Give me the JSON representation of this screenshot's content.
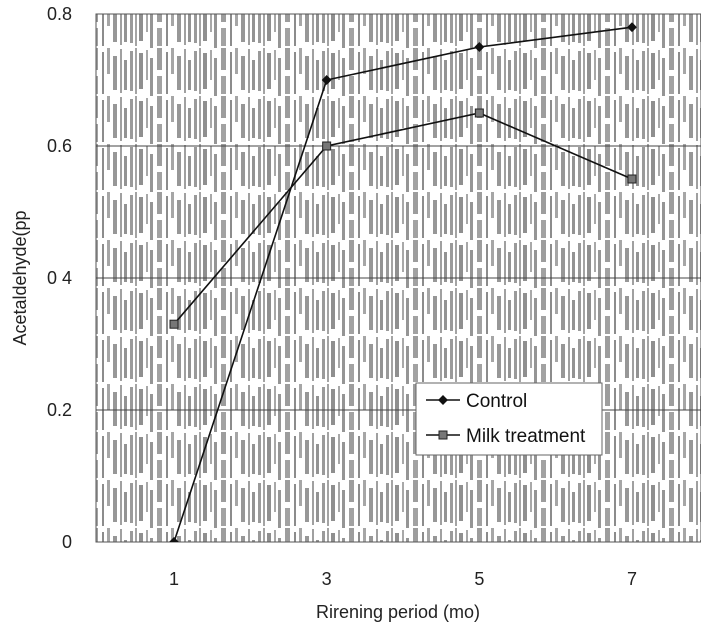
{
  "chart_data": {
    "type": "line",
    "title": "",
    "xlabel": "Rirening period (mo)",
    "ylabel": "Acetaldehyde(pp",
    "x": [
      1,
      3,
      5,
      7
    ],
    "x_tick_labels": [
      "1",
      "3",
      "5",
      "7"
    ],
    "y_tick_labels": [
      "0",
      "0.2",
      "0 4",
      "0.6",
      "0.8"
    ],
    "y_ticks": [
      0,
      0.2,
      0.4,
      0.6,
      0.8
    ],
    "ylim": [
      0,
      0.8
    ],
    "grid": "horizontal",
    "legend": "center-right",
    "series": [
      {
        "name": "Control",
        "marker": "diamond",
        "values": [
          0.0,
          0.7,
          0.75,
          0.78
        ]
      },
      {
        "name": "Milk treatment",
        "marker": "square",
        "values": [
          0.33,
          0.6,
          0.65,
          0.55
        ]
      }
    ],
    "colors": {
      "line": "#111111",
      "grid": "#444444",
      "background": "#ffffff",
      "texture": "#9a9a9a"
    }
  }
}
